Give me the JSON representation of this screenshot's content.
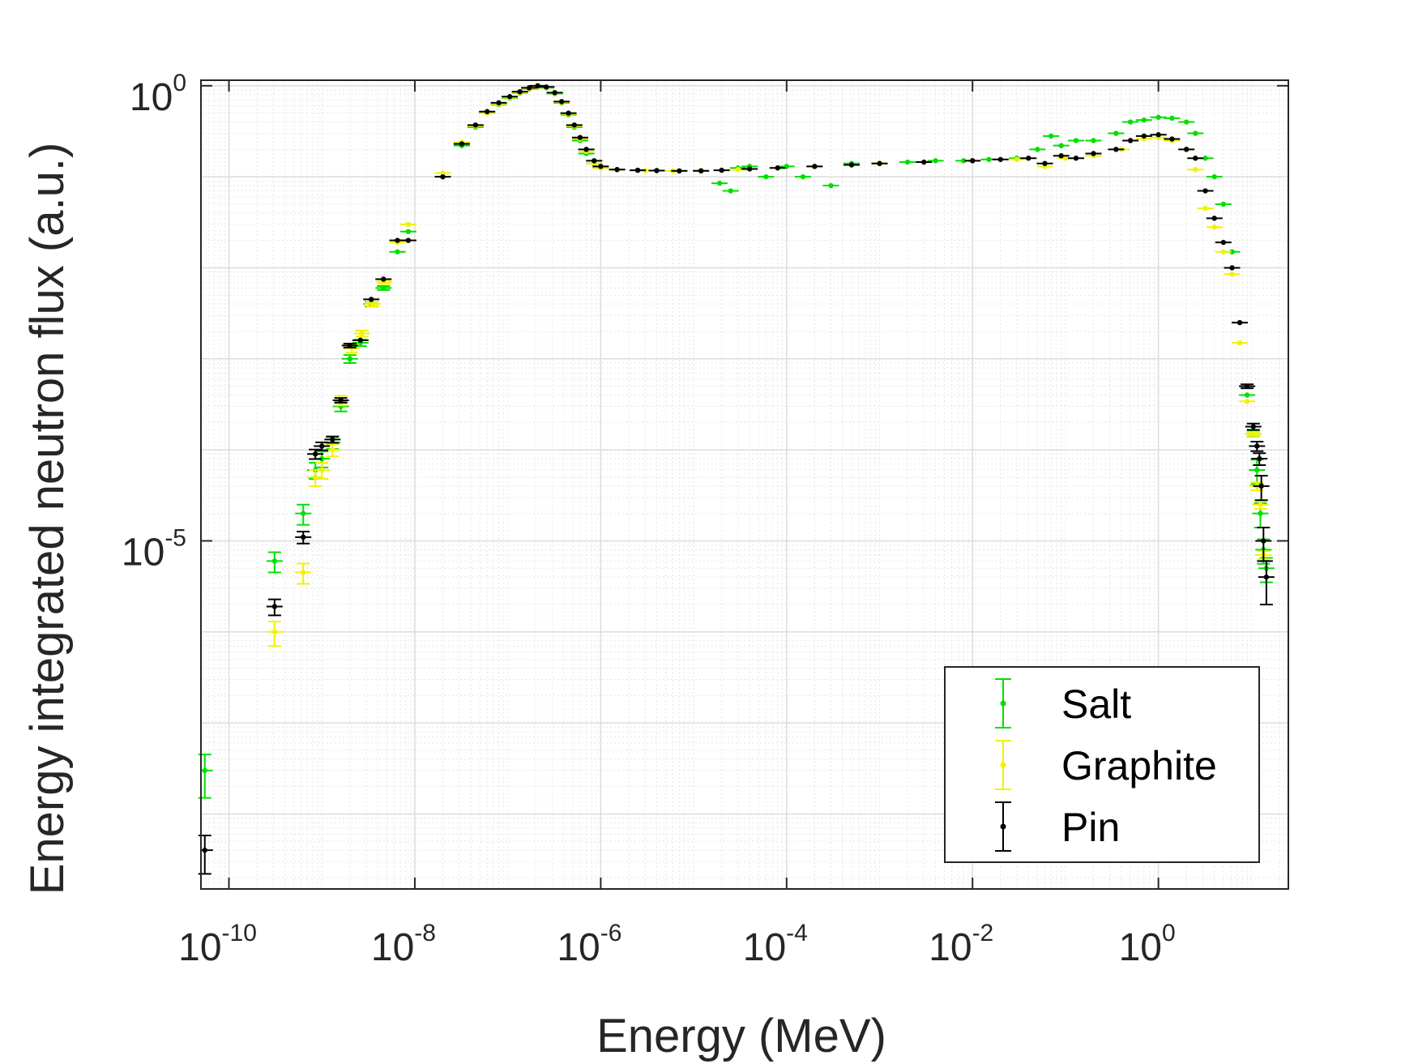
{
  "chart_data": {
    "type": "scatter",
    "xlabel": "Energy (MeV)",
    "ylabel": "Energy integrated neutron flux (a.u.)",
    "xscale": "log",
    "yscale": "log",
    "xlim": [
      5e-11,
      25
    ],
    "ylim": [
      1.5e-09,
      1.15
    ],
    "xticks": [
      {
        "value": 1e-10,
        "base": "10",
        "exp": "-10"
      },
      {
        "value": 1e-08,
        "base": "10",
        "exp": "-8"
      },
      {
        "value": 1e-06,
        "base": "10",
        "exp": "-6"
      },
      {
        "value": 0.0001,
        "base": "10",
        "exp": "-4"
      },
      {
        "value": 0.01,
        "base": "10",
        "exp": "-2"
      },
      {
        "value": 1,
        "base": "10",
        "exp": "0"
      }
    ],
    "yticks": [
      {
        "value": 1e-05,
        "base": "10",
        "exp": "-5"
      },
      {
        "value": 1,
        "base": "10",
        "exp": "0"
      }
    ],
    "grid": true,
    "legend_position": "bottom-right",
    "series": [
      {
        "name": "Salt",
        "color": "#00e000",
        "points": [
          [
            5.5e-11,
            3e-08,
            0.5
          ],
          [
            3.1e-10,
            6e-06,
            0.25
          ],
          [
            6.3e-10,
            2e-05,
            0.25
          ],
          [
            8.5e-10,
            6e-05,
            0.2
          ],
          [
            1e-09,
            8e-05,
            0.2
          ],
          [
            1.3e-09,
            0.00012,
            0.15
          ],
          [
            1.6e-09,
            0.0003,
            0.12
          ],
          [
            2e-09,
            0.001,
            0.1
          ],
          [
            2.6e-09,
            0.0015,
            0.08
          ],
          [
            3.4e-09,
            0.004,
            0.06
          ],
          [
            4.6e-09,
            0.006,
            0.05
          ],
          [
            6.5e-09,
            0.015,
            0.04
          ],
          [
            8.5e-09,
            0.025,
            0.03
          ],
          [
            2e-08,
            0.1,
            0.02
          ],
          [
            3.2e-08,
            0.22,
            0.02
          ],
          [
            4.5e-08,
            0.35,
            0.02
          ],
          [
            6e-08,
            0.5,
            0.02
          ],
          [
            8e-08,
            0.62,
            0.02
          ],
          [
            1.05e-07,
            0.73,
            0.02
          ],
          [
            1.35e-07,
            0.83,
            0.02
          ],
          [
            1.7e-07,
            0.92,
            0.02
          ],
          [
            2.1e-07,
            0.97,
            0.02
          ],
          [
            2.6e-07,
            0.95,
            0.02
          ],
          [
            3.2e-07,
            0.82,
            0.02
          ],
          [
            3.8e-07,
            0.65,
            0.02
          ],
          [
            4.5e-07,
            0.48,
            0.02
          ],
          [
            5.2e-07,
            0.35,
            0.02
          ],
          [
            6e-07,
            0.25,
            0.02
          ],
          [
            7e-07,
            0.18,
            0.02
          ],
          [
            8.5e-07,
            0.14,
            0.02
          ],
          [
            1e-06,
            0.125,
            0.02
          ],
          [
            1.5e-06,
            0.12,
            0.02
          ],
          [
            2.5e-06,
            0.118,
            0.02
          ],
          [
            4e-06,
            0.117,
            0.02
          ],
          [
            7e-06,
            0.116,
            0.02
          ],
          [
            1.2e-05,
            0.117,
            0.02
          ],
          [
            1.9e-05,
            0.085,
            0.02
          ],
          [
            2.5e-05,
            0.07,
            0.02
          ],
          [
            3e-05,
            0.125,
            0.02
          ],
          [
            4e-05,
            0.13,
            0.02
          ],
          [
            6e-05,
            0.1,
            0.02
          ],
          [
            0.0001,
            0.13,
            0.02
          ],
          [
            0.00015,
            0.1,
            0.02
          ],
          [
            0.0002,
            0.13,
            0.02
          ],
          [
            0.0003,
            0.08,
            0.02
          ],
          [
            0.0005,
            0.14,
            0.02
          ],
          [
            0.001,
            0.14,
            0.02
          ],
          [
            0.002,
            0.145,
            0.02
          ],
          [
            0.004,
            0.15,
            0.02
          ],
          [
            0.008,
            0.15,
            0.02
          ],
          [
            0.015,
            0.155,
            0.02
          ],
          [
            0.03,
            0.16,
            0.02
          ],
          [
            0.05,
            0.2,
            0.02
          ],
          [
            0.07,
            0.28,
            0.02
          ],
          [
            0.09,
            0.22,
            0.02
          ],
          [
            0.13,
            0.25,
            0.02
          ],
          [
            0.2,
            0.25,
            0.02
          ],
          [
            0.35,
            0.3,
            0.02
          ],
          [
            0.5,
            0.4,
            0.02
          ],
          [
            0.7,
            0.42,
            0.02
          ],
          [
            1,
            0.45,
            0.02
          ],
          [
            1.4,
            0.44,
            0.02
          ],
          [
            2,
            0.4,
            0.02
          ],
          [
            2.5,
            0.3,
            0.02
          ],
          [
            3.2,
            0.16,
            0.02
          ],
          [
            4,
            0.1,
            0.02
          ],
          [
            5,
            0.05,
            0.02
          ],
          [
            6.2,
            0.015,
            0.02
          ],
          [
            7.5,
            0.0025,
            0.03
          ],
          [
            9,
            0.0004,
            0.04
          ],
          [
            10.5,
            0.00015,
            0.06
          ],
          [
            11.5,
            6e-05,
            0.3
          ],
          [
            12.5,
            2e-05,
            0.3
          ],
          [
            13.5,
            8e-06,
            0.3
          ],
          [
            14.5,
            5e-06,
            0.3
          ]
        ]
      },
      {
        "name": "Graphite",
        "color": "#f2f200",
        "points": [
          [
            3.1e-10,
            1e-06,
            0.3
          ],
          [
            6.3e-10,
            4.5e-06,
            0.25
          ],
          [
            8.5e-10,
            5e-05,
            0.2
          ],
          [
            1e-09,
            6e-05,
            0.2
          ],
          [
            1.3e-09,
            0.0001,
            0.15
          ],
          [
            1.6e-09,
            0.00035,
            0.12
          ],
          [
            2.1e-09,
            0.0013,
            0.1
          ],
          [
            2.7e-09,
            0.0019,
            0.08
          ],
          [
            3.5e-09,
            0.004,
            0.06
          ],
          [
            4.7e-09,
            0.007,
            0.05
          ],
          [
            6.5e-09,
            0.019,
            0.04
          ],
          [
            8.5e-09,
            0.03,
            0.03
          ],
          [
            2e-08,
            0.11,
            0.02
          ],
          [
            3.2e-08,
            0.24,
            0.02
          ],
          [
            4.5e-08,
            0.36,
            0.02
          ],
          [
            6e-08,
            0.5,
            0.02
          ],
          [
            8e-08,
            0.63,
            0.02
          ],
          [
            1.05e-07,
            0.74,
            0.02
          ],
          [
            1.35e-07,
            0.84,
            0.02
          ],
          [
            1.7e-07,
            0.93,
            0.02
          ],
          [
            2.1e-07,
            0.98,
            0.02
          ],
          [
            2.6e-07,
            0.96,
            0.02
          ],
          [
            3.2e-07,
            0.83,
            0.02
          ],
          [
            3.8e-07,
            0.66,
            0.02
          ],
          [
            4.5e-07,
            0.49,
            0.02
          ],
          [
            5.2e-07,
            0.36,
            0.02
          ],
          [
            6e-07,
            0.26,
            0.02
          ],
          [
            7e-07,
            0.19,
            0.02
          ],
          [
            8.5e-07,
            0.14,
            0.02
          ],
          [
            1e-06,
            0.125,
            0.02
          ],
          [
            1.5e-06,
            0.12,
            0.02
          ],
          [
            3e-06,
            0.117,
            0.02
          ],
          [
            6e-06,
            0.116,
            0.02
          ],
          [
            1.2e-05,
            0.116,
            0.02
          ],
          [
            3e-05,
            0.12,
            0.02
          ],
          [
            8e-05,
            0.125,
            0.02
          ],
          [
            0.0002,
            0.13,
            0.02
          ],
          [
            0.0005,
            0.135,
            0.02
          ],
          [
            0.001,
            0.14,
            0.02
          ],
          [
            0.003,
            0.145,
            0.02
          ],
          [
            0.01,
            0.15,
            0.02
          ],
          [
            0.03,
            0.155,
            0.02
          ],
          [
            0.06,
            0.13,
            0.02
          ],
          [
            0.1,
            0.16,
            0.02
          ],
          [
            0.2,
            0.17,
            0.02
          ],
          [
            0.4,
            0.2,
            0.02
          ],
          [
            0.7,
            0.26,
            0.02
          ],
          [
            1,
            0.27,
            0.02
          ],
          [
            1.4,
            0.25,
            0.02
          ],
          [
            2,
            0.2,
            0.02
          ],
          [
            2.5,
            0.12,
            0.02
          ],
          [
            3.2,
            0.045,
            0.02
          ],
          [
            4,
            0.028,
            0.02
          ],
          [
            5,
            0.015,
            0.02
          ],
          [
            6.2,
            0.0085,
            0.02
          ],
          [
            7.5,
            0.0015,
            0.03
          ],
          [
            9,
            0.00034,
            0.04
          ],
          [
            10.5,
            0.00015,
            0.05
          ],
          [
            11.5,
            4e-05,
            0.1
          ],
          [
            12.5,
            2.5e-05,
            0.1
          ],
          [
            13.5,
            7e-06,
            0.1
          ]
        ]
      },
      {
        "name": "Pin",
        "color": "#000000",
        "points": [
          [
            5.5e-11,
            4e-09,
            0.45
          ],
          [
            3.1e-10,
            1.9e-06,
            0.2
          ],
          [
            6.3e-10,
            1.1e-05,
            0.15
          ],
          [
            8.5e-10,
            9e-05,
            0.12
          ],
          [
            1e-09,
            0.00011,
            0.1
          ],
          [
            1.3e-09,
            0.00013,
            0.08
          ],
          [
            1.6e-09,
            0.00035,
            0.06
          ],
          [
            2e-09,
            0.0014,
            0.05
          ],
          [
            2.6e-09,
            0.0016,
            0.04
          ],
          [
            3.4e-09,
            0.0045,
            0.03
          ],
          [
            4.6e-09,
            0.0075,
            0.03
          ],
          [
            6.5e-09,
            0.02,
            0.02
          ],
          [
            8.5e-09,
            0.02,
            0.02
          ],
          [
            2e-08,
            0.1,
            0.02
          ],
          [
            3.2e-08,
            0.23,
            0.02
          ],
          [
            4.5e-08,
            0.37,
            0.02
          ],
          [
            6e-08,
            0.52,
            0.02
          ],
          [
            8e-08,
            0.65,
            0.02
          ],
          [
            1.05e-07,
            0.76,
            0.02
          ],
          [
            1.35e-07,
            0.86,
            0.02
          ],
          [
            1.7e-07,
            0.95,
            0.02
          ],
          [
            2.1e-07,
            1.0,
            0.02
          ],
          [
            2.6e-07,
            0.97,
            0.02
          ],
          [
            3.2e-07,
            0.84,
            0.02
          ],
          [
            3.8e-07,
            0.67,
            0.02
          ],
          [
            4.5e-07,
            0.5,
            0.02
          ],
          [
            5.2e-07,
            0.37,
            0.02
          ],
          [
            6e-07,
            0.27,
            0.02
          ],
          [
            7e-07,
            0.2,
            0.02
          ],
          [
            8.5e-07,
            0.15,
            0.02
          ],
          [
            1e-06,
            0.13,
            0.02
          ],
          [
            1.5e-06,
            0.12,
            0.02
          ],
          [
            2.5e-06,
            0.118,
            0.02
          ],
          [
            4e-06,
            0.117,
            0.02
          ],
          [
            7e-06,
            0.116,
            0.02
          ],
          [
            1.2e-05,
            0.116,
            0.02
          ],
          [
            2e-05,
            0.118,
            0.02
          ],
          [
            4e-05,
            0.122,
            0.02
          ],
          [
            8e-05,
            0.125,
            0.02
          ],
          [
            0.0002,
            0.13,
            0.02
          ],
          [
            0.0005,
            0.135,
            0.02
          ],
          [
            0.001,
            0.14,
            0.02
          ],
          [
            0.003,
            0.145,
            0.02
          ],
          [
            0.01,
            0.15,
            0.02
          ],
          [
            0.02,
            0.155,
            0.02
          ],
          [
            0.04,
            0.16,
            0.02
          ],
          [
            0.06,
            0.14,
            0.02
          ],
          [
            0.09,
            0.17,
            0.02
          ],
          [
            0.13,
            0.16,
            0.02
          ],
          [
            0.2,
            0.18,
            0.02
          ],
          [
            0.35,
            0.2,
            0.02
          ],
          [
            0.5,
            0.25,
            0.02
          ],
          [
            0.7,
            0.28,
            0.02
          ],
          [
            1,
            0.29,
            0.02
          ],
          [
            1.4,
            0.26,
            0.02
          ],
          [
            2,
            0.2,
            0.02
          ],
          [
            2.5,
            0.16,
            0.02
          ],
          [
            3.2,
            0.07,
            0.02
          ],
          [
            4,
            0.035,
            0.02
          ],
          [
            5,
            0.019,
            0.02
          ],
          [
            6.2,
            0.01,
            0.02
          ],
          [
            7.5,
            0.0025,
            0.03
          ],
          [
            9,
            0.0005,
            0.05
          ],
          [
            10.5,
            0.00018,
            0.08
          ],
          [
            11.5,
            0.00011,
            0.12
          ],
          [
            12.2,
            8e-05,
            0.15
          ],
          [
            12.8,
            4e-05,
            0.3
          ],
          [
            13.5,
            1e-05,
            0.4
          ],
          [
            14.5,
            4e-06,
            0.5
          ]
        ]
      }
    ]
  }
}
